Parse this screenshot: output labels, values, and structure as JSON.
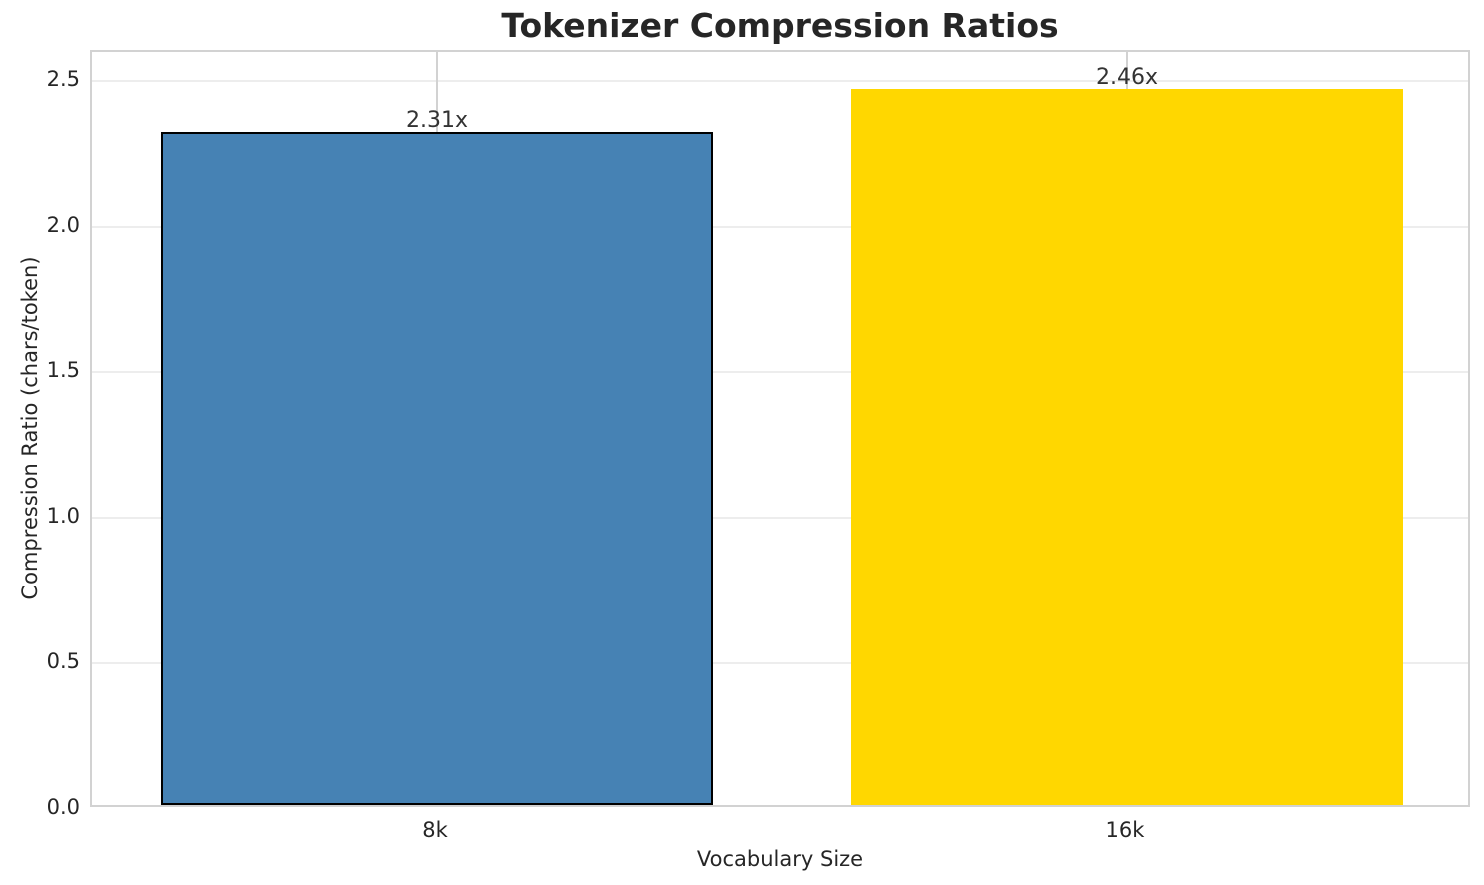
{
  "chart_data": {
    "type": "bar",
    "title": "Tokenizer Compression Ratios",
    "xlabel": "Vocabulary Size",
    "ylabel": "Compression Ratio (chars/token)",
    "categories": [
      "8k",
      "16k"
    ],
    "values": [
      2.31,
      2.46
    ],
    "bar_labels": [
      "2.31x",
      "2.46x"
    ],
    "yticks": [
      0.0,
      0.5,
      1.0,
      1.5,
      2.0,
      2.5
    ],
    "ytick_labels": [
      "0.0",
      "0.5",
      "1.0",
      "1.5",
      "2.0",
      "2.5"
    ],
    "ylim": [
      0,
      2.6
    ],
    "grid": true,
    "legend": "none",
    "colors": {
      "bars": [
        "#4682B4",
        "#FFD700"
      ],
      "bar_edges": [
        "#000000",
        "none"
      ],
      "grid_horizontal": "#ededed",
      "grid_vertical": "#d2d2d2",
      "spine": "#d2d2d2",
      "text": "#262626",
      "value_label": "#333333"
    }
  }
}
